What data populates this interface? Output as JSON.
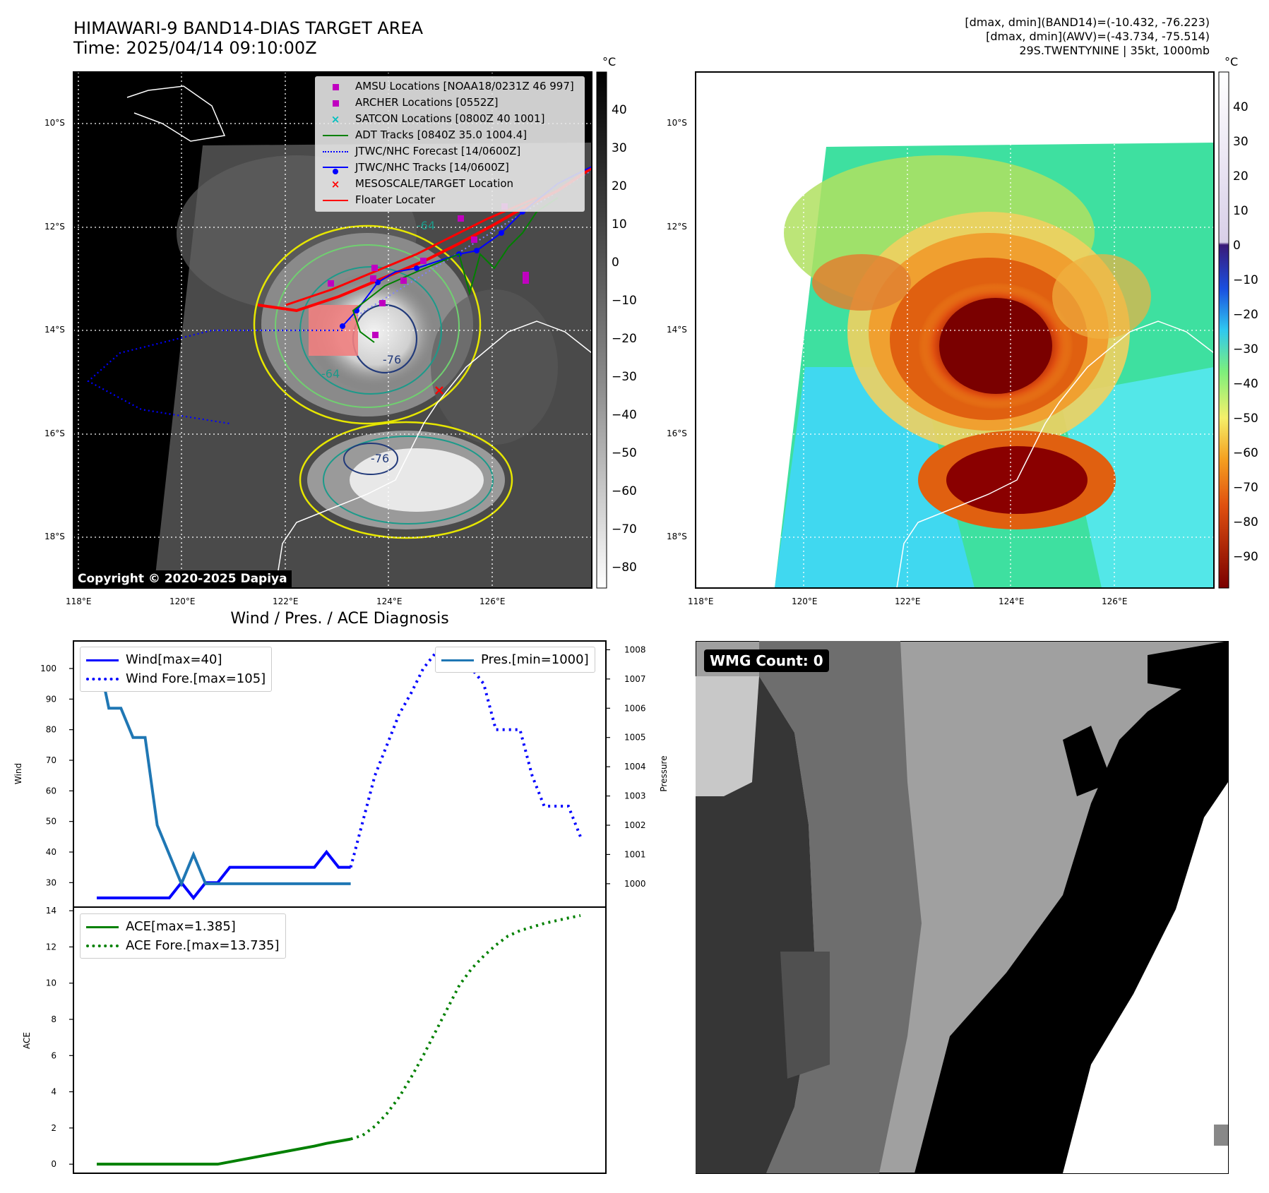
{
  "header": {
    "title_line1": "HIMAWARI-9 BAND14-DIAS TARGET AREA",
    "title_line2": "Time: 2025/04/14 09:10:00Z",
    "info_line1": "[dmax, dmin](BAND14)=(-10.432, -76.223)",
    "info_line2": "[dmax, dmin](AWV)=(-43.734, -75.514)",
    "info_line3": "29S.TWENTYNINE | 35kt, 1000mb"
  },
  "map_axes": {
    "lon_ticks": [
      "118°E",
      "120°E",
      "122°E",
      "124°E",
      "126°E"
    ],
    "lat_ticks": [
      "10°S",
      "12°S",
      "14°S",
      "16°S",
      "18°S"
    ]
  },
  "ir_panel": {
    "copyright": "Copyright © 2020-2025 Dapiya",
    "colorbar_unit": "°C",
    "colorbar_ticks": [
      "40",
      "30",
      "20",
      "10",
      "0",
      "−10",
      "−20",
      "−30",
      "−40",
      "−50",
      "−60",
      "−70",
      "−80"
    ],
    "contour_labels": [
      "-64",
      "-64",
      "-76",
      "-76"
    ],
    "legend": [
      {
        "label": "AMSU Locations [NOAA18/0231Z 46 997]",
        "color": "#c000c0",
        "marker": "square"
      },
      {
        "label": "ARCHER Locations [0552Z]",
        "color": "#c000c0",
        "marker": "square"
      },
      {
        "label": "SATCON Locations [0800Z 40 1001]",
        "color": "#00c0c0",
        "marker": "x"
      },
      {
        "label": "ADT Tracks [0840Z 35.0 1004.4]",
        "color": "#008000",
        "marker": "line"
      },
      {
        "label": "JTWC/NHC Forecast [14/0600Z]",
        "color": "#0000ff",
        "marker": "dotted"
      },
      {
        "label": "JTWC/NHC Tracks [14/0600Z]",
        "color": "#0000ff",
        "marker": "line-dot"
      },
      {
        "label": "MESOSCALE/TARGET Location",
        "color": "#ff0000",
        "marker": "x"
      },
      {
        "label": "Floater Locater",
        "color": "#ff0000",
        "marker": "line"
      }
    ]
  },
  "awv_panel": {
    "colorbar_unit": "°C",
    "colorbar_ticks": [
      "40",
      "30",
      "20",
      "10",
      "0",
      "−10",
      "−20",
      "−30",
      "−40",
      "−50",
      "−60",
      "−70",
      "−80",
      "−90"
    ]
  },
  "wmg_panel": {
    "label": "WMG Count: 0"
  },
  "chart_data": [
    {
      "type": "line",
      "title": "Wind / Pres. / ACE Diagnosis",
      "ylabel": "Wind",
      "ylabel_right": "Pressure",
      "ylim": [
        22,
        109
      ],
      "ylim_right": [
        999.2,
        1008.3
      ],
      "yticks": [
        30,
        40,
        50,
        60,
        70,
        80,
        90,
        100
      ],
      "yticks_right": [
        1000,
        1001,
        1002,
        1003,
        1004,
        1005,
        1006,
        1007,
        1008
      ],
      "legend_left": [
        "Wind[max=40]",
        "Wind Fore.[max=105]"
      ],
      "legend_right": [
        "Pres.[min=1000]"
      ],
      "series": [
        {
          "name": "Wind[max=40]",
          "axis": "left",
          "style": "solid",
          "color": "#0000ff",
          "x": [
            0,
            6,
            7,
            8,
            9,
            10,
            11,
            18,
            19,
            20,
            21
          ],
          "y": [
            25,
            25,
            30,
            25,
            30,
            30,
            35,
            35,
            40,
            35,
            35
          ]
        },
        {
          "name": "Wind Fore.[max=105]",
          "axis": "left",
          "style": "dotted",
          "color": "#0000ff",
          "x": [
            21,
            22,
            23,
            24,
            25,
            26,
            27,
            28,
            29,
            30,
            31,
            32,
            33,
            34,
            35,
            36,
            37,
            38,
            39,
            40
          ],
          "y": [
            35,
            50,
            65,
            75,
            85,
            92,
            100,
            105,
            100,
            100,
            100,
            95,
            80,
            80,
            80,
            65,
            55,
            55,
            55,
            45
          ]
        },
        {
          "name": "Pres.[min=1000]",
          "axis": "right",
          "style": "solid",
          "color": "#1f77b4",
          "x": [
            0,
            1,
            2,
            3,
            4,
            5,
            6,
            7,
            8,
            9,
            10,
            21
          ],
          "y": [
            1008,
            1006,
            1006,
            1005,
            1005,
            1002,
            1001,
            1000,
            1001,
            1000,
            1000,
            1000
          ]
        }
      ]
    },
    {
      "type": "line",
      "ylabel": "ACE",
      "ylim": [
        -0.5,
        14.2
      ],
      "yticks": [
        0,
        2,
        4,
        6,
        8,
        10,
        12,
        14
      ],
      "series": [
        {
          "name": "ACE[max=1.385]",
          "style": "solid",
          "color": "#008000",
          "x": [
            0,
            10,
            18,
            19,
            21
          ],
          "y": [
            0,
            0,
            1.0,
            1.15,
            1.385
          ]
        },
        {
          "name": "ACE Fore.[max=13.735]",
          "style": "dotted",
          "color": "#008000",
          "x": [
            21,
            22,
            23,
            24,
            25,
            26,
            27,
            28,
            29,
            30,
            31,
            32,
            33,
            34,
            35,
            36,
            37,
            38,
            39,
            40
          ],
          "y": [
            1.385,
            1.6,
            2.1,
            2.8,
            3.7,
            4.8,
            6.0,
            7.3,
            8.6,
            9.9,
            10.8,
            11.5,
            12.1,
            12.6,
            12.9,
            13.1,
            13.3,
            13.45,
            13.6,
            13.735
          ]
        }
      ]
    }
  ]
}
